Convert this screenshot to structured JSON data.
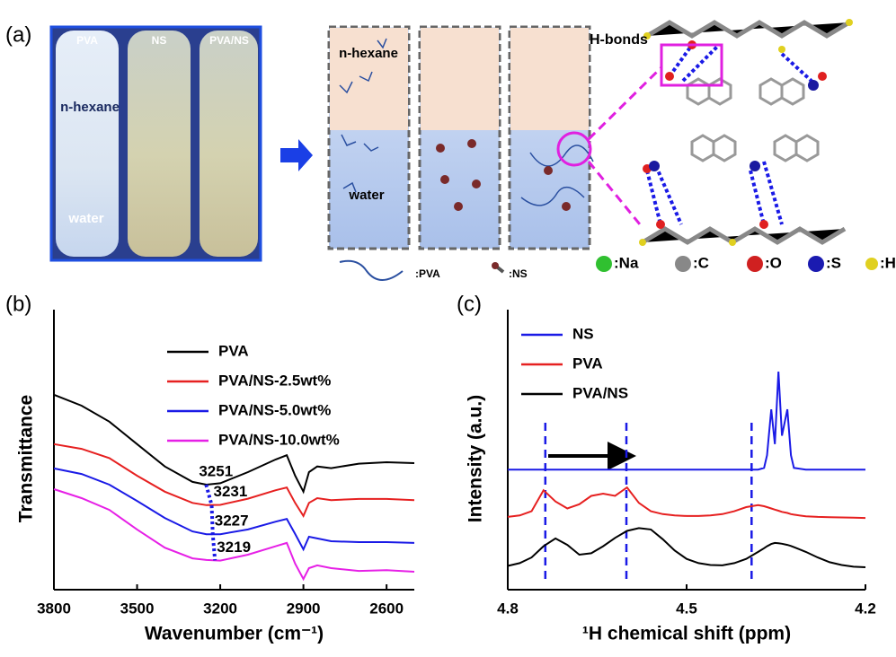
{
  "panel_labels": [
    "(a)",
    "(b)",
    "(c)"
  ],
  "diagram": {
    "photo_labels": [
      "PVA",
      "NS",
      "PVA/NS"
    ],
    "photo_layers": [
      "n-hexane",
      "water"
    ],
    "scheme_layers": [
      "n-hexane",
      "water"
    ],
    "bond_label": "H-bonds",
    "legend": [
      ":PVA",
      ":NS",
      ":Na",
      ":C",
      ":O",
      ":S",
      ":H"
    ]
  },
  "chart_data": [
    {
      "type": "line",
      "x_label": "Wavenumber (cm⁻¹)",
      "y_label": "Transmittance",
      "x": [
        3800,
        3700,
        3600,
        3500,
        3400,
        3300,
        3250,
        3200,
        3100,
        3000,
        2960,
        2930,
        2900,
        2880,
        2850,
        2800,
        2700,
        2600,
        2500
      ],
      "xlim": [
        3800,
        2500
      ],
      "xticks": [
        3800,
        3500,
        3200,
        2900,
        2600
      ],
      "ylim": [
        0,
        100
      ],
      "peak_color": "#1a1ae6",
      "series": [
        {
          "name": "PVA",
          "color": "#000000",
          "peak": 3251,
          "values": [
            69.6,
            65.7,
            60,
            52,
            44,
            38.5,
            37.5,
            38,
            42,
            46.5,
            48,
            40.7,
            35,
            42,
            44,
            43.4,
            45,
            45.5,
            45.2
          ]
        },
        {
          "name": "PVA/NS-2.5wt%",
          "color": "#e62020",
          "peak": 3231,
          "values": [
            52,
            50.3,
            47,
            40.7,
            35,
            31,
            30.2,
            30.3,
            32.5,
            35.5,
            36.5,
            31,
            26.3,
            31,
            32.7,
            32,
            32.4,
            32.4,
            32
          ]
        },
        {
          "name": "PVA/NS-5.0wt%",
          "color": "#1a1ae6",
          "peak": 3227,
          "values": [
            43.3,
            41.3,
            37.5,
            31.7,
            25.6,
            20.8,
            19.8,
            19.8,
            21.5,
            24.3,
            25.3,
            19.9,
            14.4,
            18.9,
            18.3,
            17.3,
            17,
            17,
            16.7
          ]
        },
        {
          "name": "PVA/NS-10.0wt%",
          "color": "#e620e6",
          "peak": 3219,
          "values": [
            35.9,
            32.7,
            28.5,
            21.5,
            15,
            11.2,
            10.6,
            10.4,
            12.5,
            15.5,
            16.7,
            9.3,
            3.8,
            7.7,
            8.7,
            7.7,
            6.7,
            7,
            6.4
          ]
        }
      ]
    },
    {
      "type": "line",
      "x_label": "¹H chemical shift (ppm)",
      "y_label": "Intensity (a.u.)",
      "x": [
        4.8,
        4.78,
        4.76,
        4.74,
        4.72,
        4.7,
        4.68,
        4.66,
        4.64,
        4.62,
        4.6,
        4.58,
        4.56,
        4.54,
        4.52,
        4.5,
        4.48,
        4.46,
        4.44,
        4.42,
        4.4,
        4.38,
        4.37,
        4.365,
        4.358,
        4.352,
        4.346,
        4.34,
        4.331,
        4.325,
        4.32,
        4.3,
        4.28,
        4.26,
        4.24,
        4.22,
        4.2
      ],
      "xlim": [
        4.8,
        4.2
      ],
      "xticks": [
        4.8,
        4.5,
        4.2
      ],
      "ylim": [
        0,
        100
      ],
      "vlines": [
        4.737,
        4.601,
        4.391
      ],
      "vline_color": "#1a1ae6",
      "series": [
        {
          "name": "NS",
          "color": "#1a1ae6",
          "values": [
            42.9,
            42.9,
            42.9,
            42.9,
            42.9,
            42.9,
            42.9,
            42.9,
            42.9,
            42.9,
            42.9,
            42.9,
            42.9,
            42.9,
            42.9,
            42.9,
            42.9,
            42.9,
            42.9,
            42.9,
            42.9,
            42.9,
            43.5,
            48,
            64.4,
            52,
            77.9,
            55,
            64.4,
            48,
            43.5,
            42.9,
            42.9,
            42.9,
            42.9,
            42.9,
            42.9
          ]
        },
        {
          "name": "PVA",
          "color": "#e62020",
          "values": [
            26,
            26.5,
            28,
            35.5,
            31.5,
            29,
            30.5,
            33.5,
            34.3,
            33.5,
            36.5,
            31,
            28,
            27,
            26.5,
            26.3,
            26.3,
            26.5,
            27,
            28,
            29.5,
            30.2,
            29.8,
            29.5,
            29,
            28.6,
            28.2,
            27.8,
            27.4,
            27,
            26.8,
            26.2,
            26,
            25.9,
            25.8,
            25.7,
            25.6
          ]
        },
        {
          "name": "PVA/NS",
          "color": "#000000",
          "values": [
            8.5,
            9.5,
            11.5,
            15.5,
            18.3,
            16,
            12.5,
            13,
            15.5,
            18.5,
            21,
            22,
            21.5,
            18,
            14,
            11,
            9.5,
            8.8,
            8.7,
            9.5,
            11,
            13.5,
            14.8,
            15.5,
            16.3,
            16.7,
            16.6,
            16.4,
            16,
            15.6,
            15.2,
            13.5,
            11.5,
            9.8,
            8.8,
            8.2,
            8
          ]
        }
      ]
    }
  ]
}
